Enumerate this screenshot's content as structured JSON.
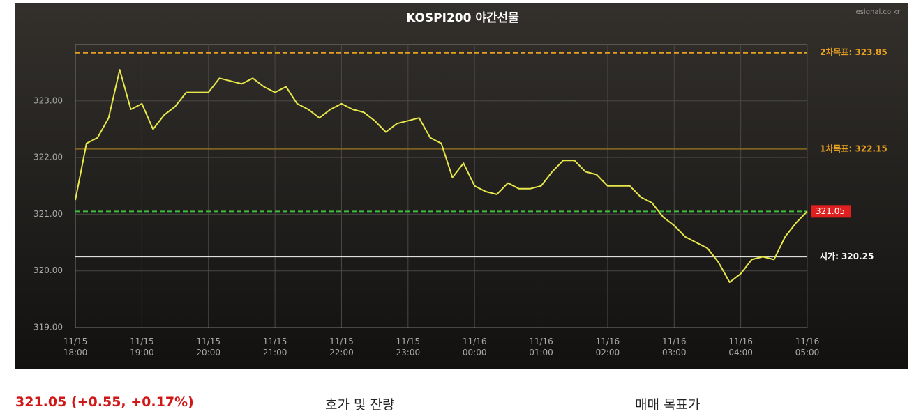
{
  "chart_data": {
    "type": "line",
    "title": "KOSPI200 야간선물",
    "source": "esignal.co.kr",
    "x": [
      "11/15 18:00",
      "11/15 18:10",
      "11/15 18:20",
      "11/15 18:30",
      "11/15 18:40",
      "11/15 18:50",
      "11/15 19:00",
      "11/15 19:10",
      "11/15 19:20",
      "11/15 19:30",
      "11/15 19:40",
      "11/15 19:50",
      "11/15 20:00",
      "11/15 20:10",
      "11/15 20:20",
      "11/15 20:30",
      "11/15 20:40",
      "11/15 20:50",
      "11/15 21:00",
      "11/15 21:10",
      "11/15 21:20",
      "11/15 21:30",
      "11/15 21:40",
      "11/15 21:50",
      "11/15 22:00",
      "11/15 22:10",
      "11/15 22:20",
      "11/15 22:30",
      "11/15 22:40",
      "11/15 22:50",
      "11/15 23:00",
      "11/15 23:10",
      "11/15 23:20",
      "11/15 23:30",
      "11/15 23:40",
      "11/15 23:50",
      "11/16 00:00",
      "11/16 00:10",
      "11/16 00:20",
      "11/16 00:30",
      "11/16 00:40",
      "11/16 00:50",
      "11/16 01:00",
      "11/16 01:10",
      "11/16 01:20",
      "11/16 01:30",
      "11/16 01:40",
      "11/16 01:50",
      "11/16 02:00",
      "11/16 02:10",
      "11/16 02:20",
      "11/16 02:30",
      "11/16 02:40",
      "11/16 02:50",
      "11/16 03:00",
      "11/16 03:10",
      "11/16 03:20",
      "11/16 03:30",
      "11/16 03:40",
      "11/16 03:50",
      "11/16 04:00",
      "11/16 04:10",
      "11/16 04:20",
      "11/16 04:30",
      "11/16 04:40",
      "11/16 04:50",
      "11/16 05:00"
    ],
    "series": [
      {
        "color": "#e8e84a",
        "values": [
          321.25,
          322.25,
          322.35,
          322.7,
          323.55,
          322.85,
          322.95,
          322.5,
          322.75,
          322.9,
          323.15,
          323.15,
          323.15,
          323.4,
          323.35,
          323.3,
          323.4,
          323.25,
          323.15,
          323.25,
          322.95,
          322.85,
          322.7,
          322.85,
          322.95,
          322.85,
          322.8,
          322.65,
          322.45,
          322.6,
          322.65,
          322.7,
          322.35,
          322.25,
          321.65,
          321.9,
          321.5,
          321.4,
          321.35,
          321.55,
          321.45,
          321.45,
          321.5,
          321.75,
          321.95,
          321.95,
          321.75,
          321.7,
          321.5,
          321.5,
          321.5,
          321.3,
          321.2,
          320.95,
          320.8,
          320.6,
          320.5,
          320.4,
          320.15,
          319.8,
          319.95,
          320.2,
          320.25,
          320.2,
          320.6,
          320.85,
          321.05
        ]
      }
    ],
    "xlim": [
      "11/15 18:00",
      "11/16 05:00"
    ],
    "xticks": [
      "11/15 18:00",
      "11/15 19:00",
      "11/15 20:00",
      "11/15 21:00",
      "11/15 22:00",
      "11/15 23:00",
      "11/16 00:00",
      "11/16 01:00",
      "11/16 02:00",
      "11/16 03:00",
      "11/16 04:00",
      "11/16 05:00"
    ],
    "ylim": [
      319,
      324
    ],
    "yticks": [
      {
        "value": 319,
        "label": "319.00"
      },
      {
        "value": 320,
        "label": "320.00"
      },
      {
        "value": 321,
        "label": "321.00"
      },
      {
        "value": 322,
        "label": "322.00"
      },
      {
        "value": 323,
        "label": "323.00"
      }
    ],
    "grid": true,
    "reference_lines": [
      {
        "value": 323.85,
        "label": "2차목표: 323.85",
        "color": "#e8a020",
        "style": "dashed"
      },
      {
        "value": 322.15,
        "label": "1차목표: 322.15",
        "color": "#8a6a20",
        "style": "solid"
      },
      {
        "value": 321.05,
        "label": "321.05",
        "color": "#3dbb3d",
        "style": "dashed",
        "badge": "#e02020"
      },
      {
        "value": 320.25,
        "label": "시가: 320.25",
        "color": "#dddddd",
        "style": "solid"
      }
    ]
  },
  "footer": {
    "price": "321.05 (+0.55, +0.17%)",
    "tab1": "호가 및 잔량",
    "tab2": "매매 목표가"
  }
}
